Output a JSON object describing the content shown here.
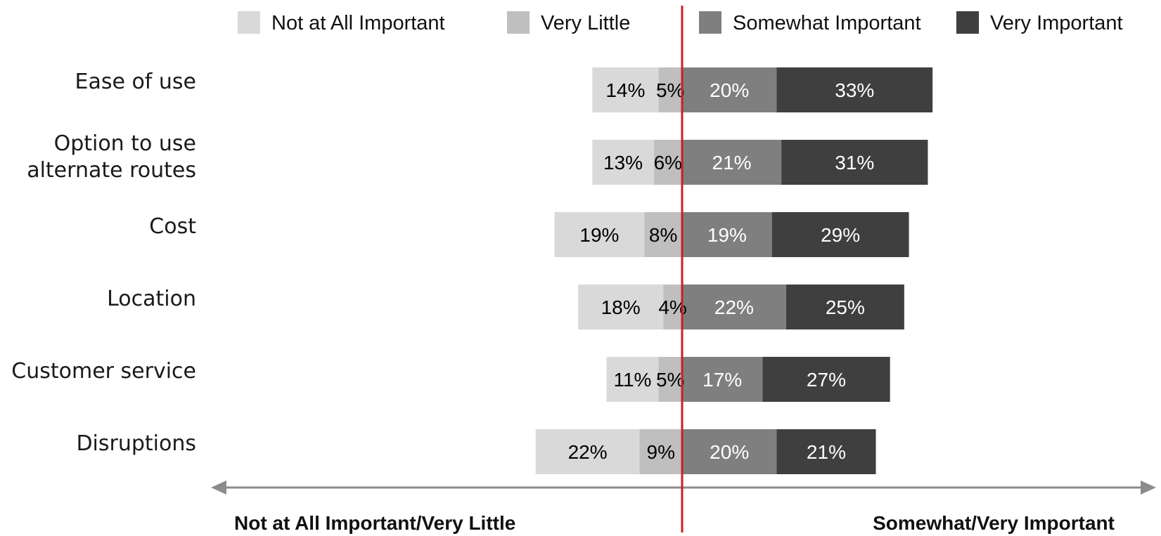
{
  "chart_data": {
    "type": "bar",
    "orientation": "horizontal",
    "stacking": "diverging",
    "categories": [
      "Ease of use",
      "Option to use alternate routes",
      "Cost",
      "Location",
      "Customer service",
      "Disruptions"
    ],
    "category_label_lines": [
      [
        "Ease of use"
      ],
      [
        "Option to use",
        "alternate routes"
      ],
      [
        "Cost"
      ],
      [
        "Location"
      ],
      [
        "Customer service"
      ],
      [
        "Disruptions"
      ]
    ],
    "series": [
      {
        "name": "Not at All Important",
        "side": "negative",
        "color": "#d9d9d9",
        "label_color": "#000000",
        "values": [
          14,
          13,
          19,
          18,
          11,
          22
        ]
      },
      {
        "name": "Very Little",
        "side": "negative",
        "color": "#bfbfbf",
        "label_color": "#000000",
        "values": [
          5,
          6,
          8,
          4,
          5,
          9
        ]
      },
      {
        "name": "Somewhat Important",
        "side": "positive",
        "color": "#7f7f7f",
        "label_color": "#ffffff",
        "values": [
          20,
          21,
          19,
          22,
          17,
          20
        ]
      },
      {
        "name": "Very Important",
        "side": "positive",
        "color": "#3f3f3f",
        "label_color": "#ffffff",
        "values": [
          33,
          31,
          29,
          25,
          27,
          21
        ]
      }
    ],
    "value_suffix": "%",
    "axis_left_label": "Not at All Important/Very Little",
    "axis_right_label": "Somewhat/Very Important",
    "center_line_color": "#cc1f1f",
    "axis_arrow_color": "#8c8c8c",
    "legend_position": "top",
    "grid": false
  }
}
